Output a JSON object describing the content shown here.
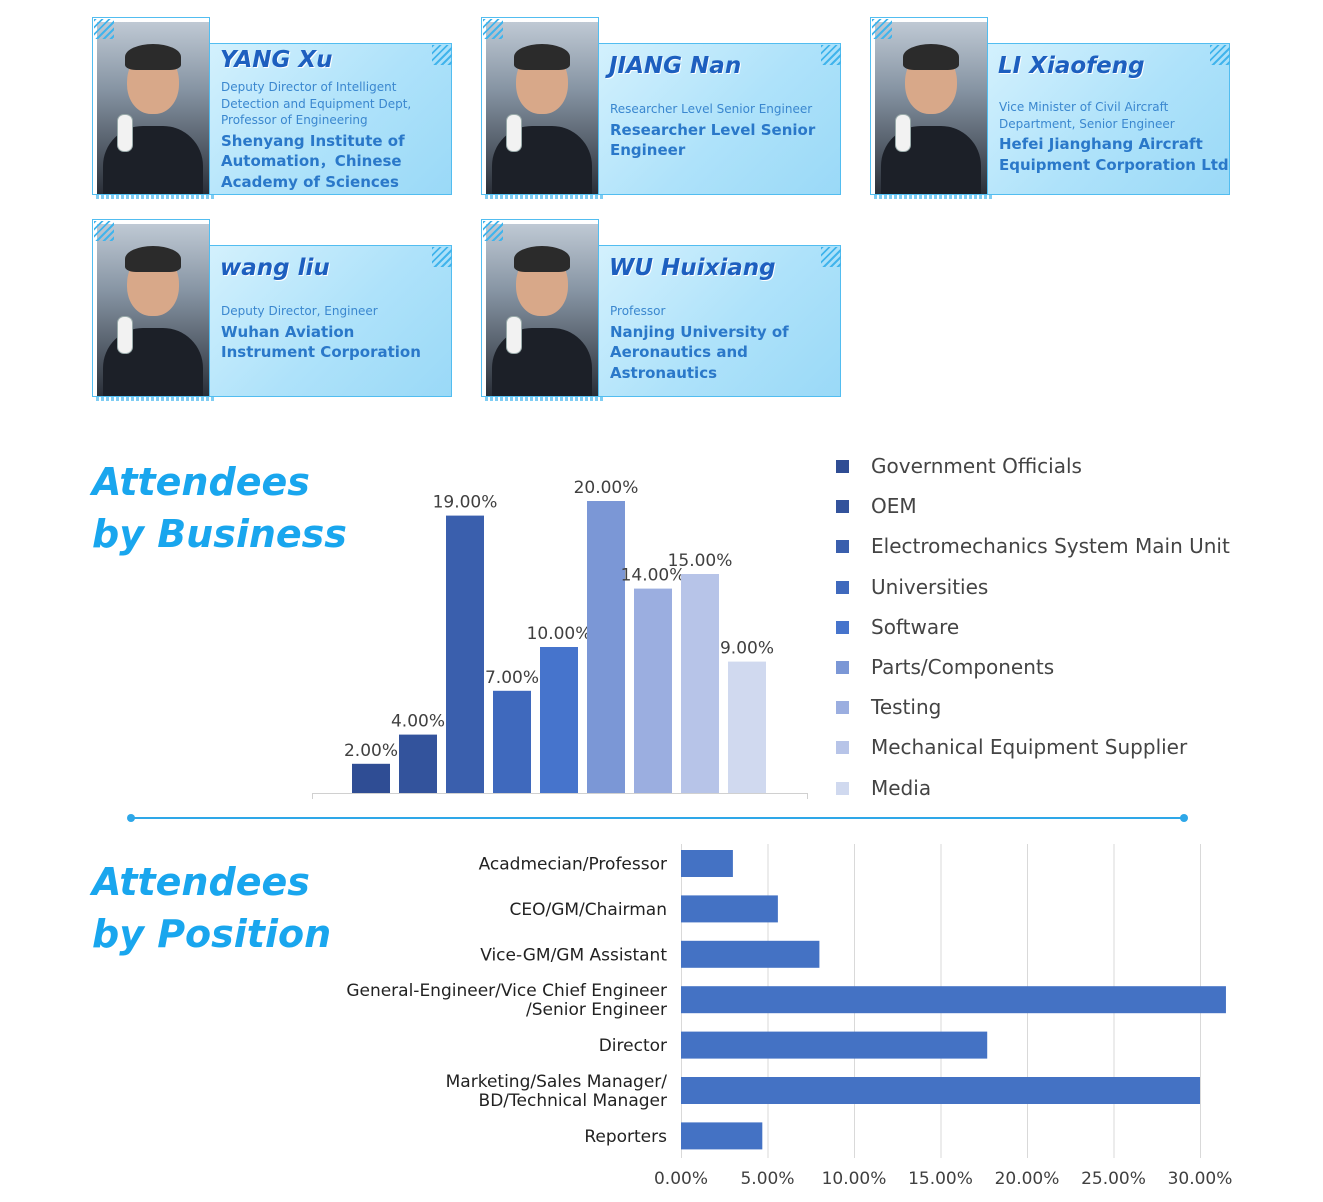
{
  "speakers": [
    {
      "name": "YANG Xu",
      "role": [
        "Deputy Director of Intelligent",
        "Detection and Equipment Dept,",
        "Professor of Engineering"
      ],
      "org": [
        "Shenyang Institute of",
        "Automation，Chinese",
        "Academy of Sciences"
      ]
    },
    {
      "name": "JIANG Nan",
      "role": [
        "Researcher Level Senior Engineer"
      ],
      "org": [
        "Researcher Level Senior",
        "Engineer"
      ]
    },
    {
      "name": "LI Xiaofeng",
      "role": [
        "Vice Minister of Civil Aircraft",
        "Department, Senior Engineer"
      ],
      "org": [
        "Hefei Jianghang Aircraft",
        "Equipment Corporation Ltd"
      ]
    },
    {
      "name": "wang liu",
      "role": [
        "Deputy Director, Engineer"
      ],
      "org": [
        "Wuhan Aviation",
        "Instrument Corporation"
      ]
    },
    {
      "name": "WU Huixiang",
      "role": [
        "Professor"
      ],
      "org": [
        "Nanjing University of",
        "Aeronautics and",
        "Astronautics"
      ]
    }
  ],
  "sections": {
    "business_title": [
      "Attendees",
      "by Business"
    ],
    "position_title": [
      "Attendees",
      "by Position"
    ]
  },
  "chart_data": [
    {
      "type": "bar",
      "categories": [
        "Government Officials",
        "OEM",
        "Electromechanics System Main Unit",
        "Universities",
        "Software",
        "Parts/Components",
        "Testing",
        "Mechanical Equipment Supplier",
        "Media"
      ],
      "values": [
        2,
        4,
        19,
        7,
        10,
        20,
        14,
        15,
        9
      ],
      "data_labels": [
        "2.00%",
        "4.00%",
        "19.00%",
        "7.00%",
        "10.00%",
        "20.00%",
        "14.00%",
        "15.00%",
        "9.00%"
      ],
      "colors": [
        "#2f4d94",
        "#33539c",
        "#3a5fad",
        "#3f69bd",
        "#4674cc",
        "#7b97d6",
        "#9baee0",
        "#b7c4e8",
        "#d0d9ef"
      ],
      "legend_position": "right",
      "grid": false,
      "unit": "%"
    },
    {
      "type": "bar",
      "orientation": "horizontal",
      "categories": [
        [
          "Acadmecian/Professor"
        ],
        [
          "CEO/GM/Chairman"
        ],
        [
          "Vice-GM/GM Assistant"
        ],
        [
          "General-Engineer/Vice Chief Engineer",
          "/Senior Engineer"
        ],
        [
          "Director"
        ],
        [
          "Marketing/Sales Manager/",
          "BD/Technical Manager"
        ],
        [
          "Reporters"
        ]
      ],
      "values": [
        3.0,
        5.6,
        8.0,
        31.5,
        17.7,
        30.0,
        4.7
      ],
      "xlim": [
        0,
        31
      ],
      "tick_values": [
        0,
        5,
        10,
        15,
        20,
        25,
        30
      ],
      "tick_labels": [
        "0.00%",
        "5.00%",
        "10.00%",
        "15.00%",
        "20.00%",
        "25.00%",
        "30.00%"
      ],
      "bar_color": "#4472c4",
      "grid": true
    }
  ]
}
